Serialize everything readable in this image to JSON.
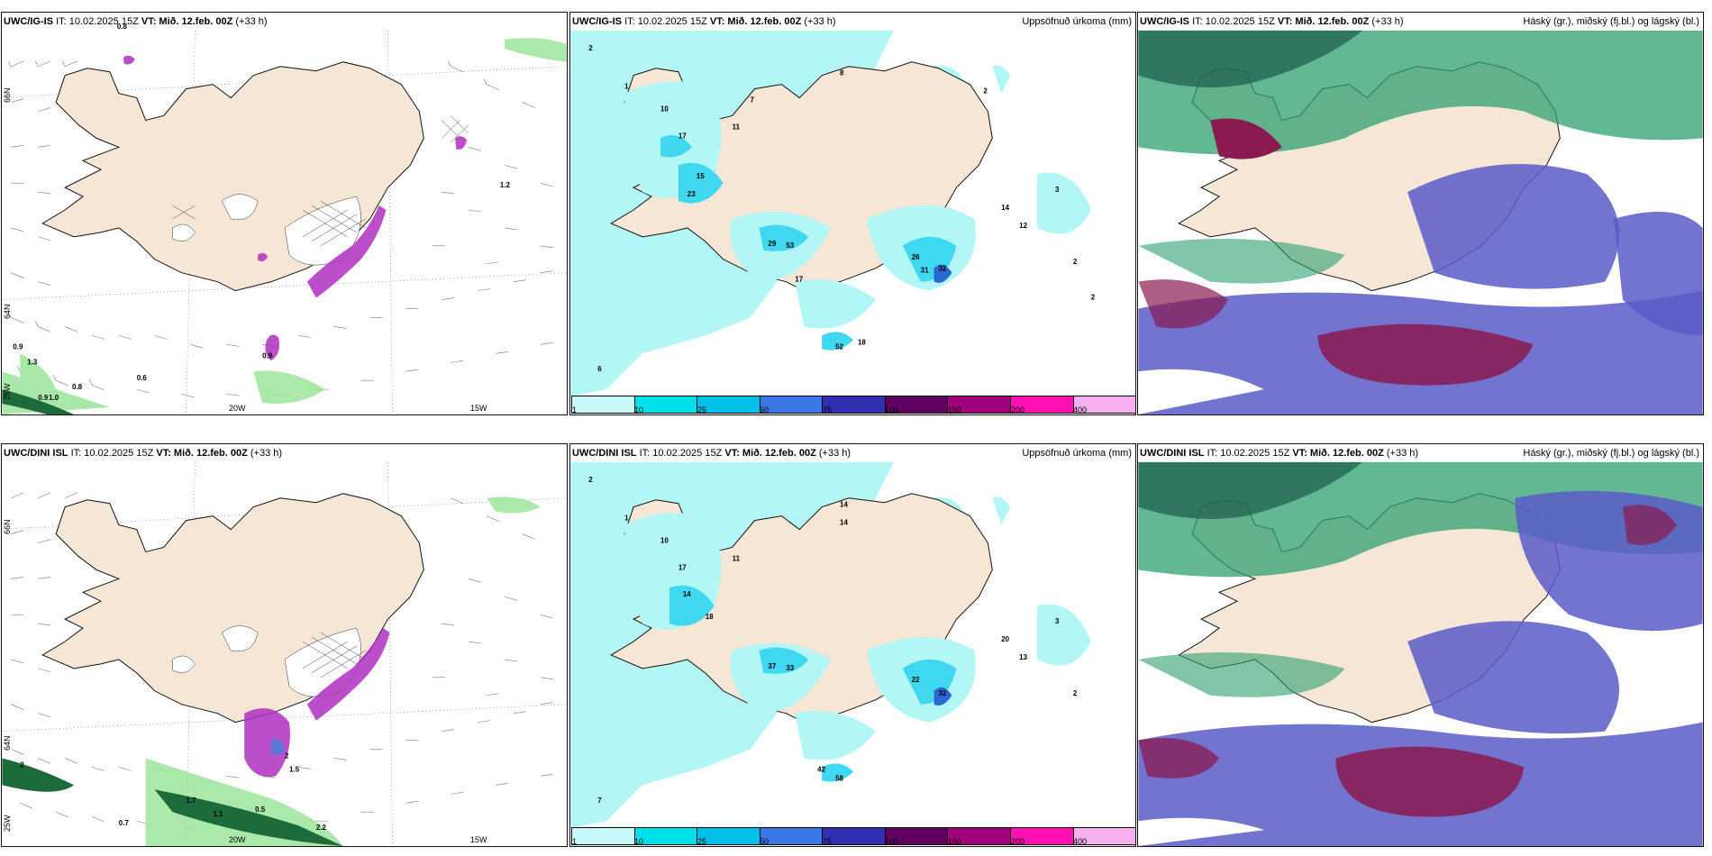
{
  "panels": {
    "p1": {
      "model": "UWC/IG-IS",
      "it_label": "IT: 10.02.2025 15Z",
      "vt_label": "VT: Mið. 12.feb. 00Z",
      "step": "(+33 h)",
      "right_title": ""
    },
    "p2": {
      "model": "UWC/IG-IS",
      "it_label": "IT: 10.02.2025 15Z",
      "vt_label": "VT: Mið. 12.feb. 00Z",
      "step": "(+33 h)",
      "right_title": "Uppsöfnuð úrkoma (mm)"
    },
    "p3": {
      "model": "UWC/IG-IS",
      "it_label": "IT: 10.02.2025 15Z",
      "vt_label": "VT: Mið. 12.feb. 00Z",
      "step": "(+33 h)",
      "right_title": "Háský (gr.), miðský (fj.bl.) og lágský (bl.)"
    },
    "p4": {
      "model": "UWC/DINI ISL",
      "it_label": "IT: 10.02.2025 15Z",
      "vt_label": "VT: Mið. 12.feb. 00Z",
      "step": "(+33 h)",
      "right_title": ""
    },
    "p5": {
      "model": "UWC/DINI ISL",
      "it_label": "IT: 10.02.2025 15Z",
      "vt_label": "VT: Mið. 12.feb. 00Z",
      "step": "(+33 h)",
      "right_title": "Uppsöfnuð úrkoma (mm)"
    },
    "p6": {
      "model": "UWC/DINI ISL",
      "it_label": "IT: 10.02.2025 15Z",
      "vt_label": "VT: Mið. 12.feb. 00Z",
      "step": "(+33 h)",
      "right_title": "Háský (gr.), miðský (fj.bl.) og lágský (bl.)"
    }
  },
  "axes": {
    "lon_20": "20W",
    "lon_15": "15W",
    "lat_66": "66N",
    "lat_64": "64N",
    "lon_25": "25W"
  },
  "legend": {
    "levels": [
      "1",
      "10",
      "25",
      "50",
      "75",
      "100",
      "150",
      "200",
      "400"
    ],
    "colors": [
      "#c8f8f8",
      "#00e0e8",
      "#00c0e8",
      "#3a78e8",
      "#3030b0",
      "#600060",
      "#a0007a",
      "#ff10b0",
      "#f6b0f0"
    ]
  },
  "colors": {
    "land": "#f6e6d6",
    "precip_light": "#aef6f6",
    "precip_mid": "#40d8f0",
    "precip_blue": "#2a6ad0",
    "high_cloud": "#2fa070",
    "mid_cloud": "#5a5ac8",
    "low_cloud": "#8a1a50",
    "snow": "#b030c0",
    "wind": "#555555"
  }
}
